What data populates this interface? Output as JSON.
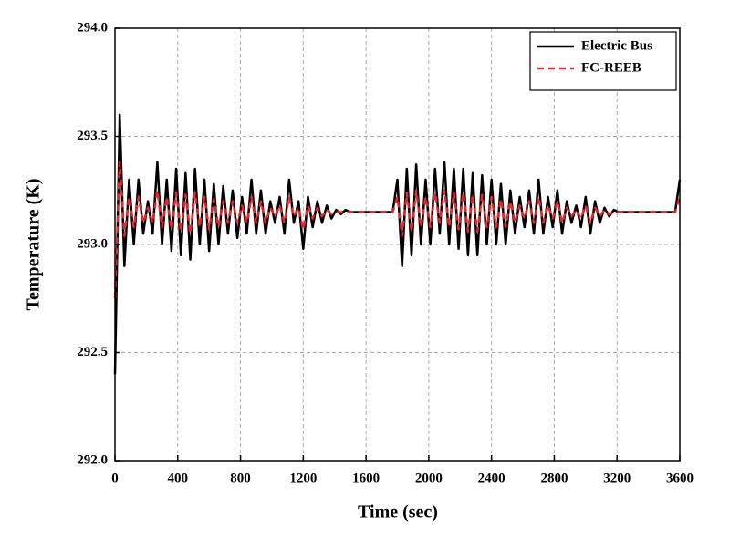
{
  "chart_data": {
    "type": "line",
    "xlabel": "Time (sec)",
    "ylabel": "Temperature (K)",
    "x": [
      0,
      30,
      60,
      90,
      120,
      150,
      180,
      210,
      240,
      270,
      300,
      330,
      360,
      390,
      420,
      450,
      480,
      510,
      540,
      570,
      600,
      630,
      660,
      690,
      720,
      750,
      780,
      810,
      840,
      870,
      900,
      930,
      960,
      990,
      1020,
      1050,
      1080,
      1110,
      1140,
      1170,
      1200,
      1230,
      1260,
      1290,
      1320,
      1350,
      1380,
      1410,
      1440,
      1470,
      1500,
      1530,
      1560,
      1590,
      1620,
      1650,
      1680,
      1710,
      1740,
      1770,
      1800,
      1830,
      1860,
      1890,
      1920,
      1950,
      1980,
      2010,
      2040,
      2070,
      2100,
      2130,
      2160,
      2190,
      2220,
      2250,
      2280,
      2310,
      2340,
      2370,
      2400,
      2430,
      2460,
      2490,
      2520,
      2550,
      2580,
      2610,
      2640,
      2670,
      2700,
      2730,
      2760,
      2790,
      2820,
      2850,
      2880,
      2910,
      2940,
      2970,
      3000,
      3030,
      3060,
      3090,
      3120,
      3150,
      3180,
      3210,
      3240,
      3270,
      3300,
      3330,
      3360,
      3390,
      3420,
      3450,
      3480,
      3510,
      3540,
      3570,
      3600
    ],
    "series": [
      {
        "name": "Electric Bus",
        "color": "#000000",
        "linestyle": "solid",
        "values": [
          292.4,
          293.6,
          292.9,
          293.3,
          293.0,
          293.3,
          293.05,
          293.2,
          293.05,
          293.38,
          293.0,
          293.3,
          292.97,
          293.35,
          292.95,
          293.33,
          292.93,
          293.35,
          293.0,
          293.3,
          292.97,
          293.28,
          293.0,
          293.27,
          293.05,
          293.25,
          293.03,
          293.22,
          293.05,
          293.3,
          293.05,
          293.25,
          293.05,
          293.2,
          293.1,
          293.22,
          293.05,
          293.3,
          293.1,
          293.2,
          292.98,
          293.22,
          293.08,
          293.2,
          293.1,
          293.18,
          293.12,
          293.16,
          293.14,
          293.16,
          293.15,
          293.15,
          293.15,
          293.15,
          293.15,
          293.15,
          293.15,
          293.15,
          293.15,
          293.15,
          293.3,
          292.9,
          293.35,
          292.95,
          293.37,
          293.0,
          293.3,
          293.0,
          293.35,
          293.05,
          293.38,
          293.0,
          293.35,
          292.98,
          293.35,
          292.95,
          293.33,
          292.95,
          293.32,
          293.0,
          293.3,
          293.0,
          293.28,
          293.0,
          293.25,
          293.05,
          293.22,
          293.08,
          293.25,
          293.05,
          293.3,
          293.05,
          293.22,
          293.08,
          293.25,
          293.05,
          293.2,
          293.1,
          293.18,
          293.08,
          293.22,
          293.05,
          293.2,
          293.1,
          293.17,
          293.13,
          293.16,
          293.15,
          293.15,
          293.15,
          293.15,
          293.15,
          293.15,
          293.15,
          293.15,
          293.15,
          293.15,
          293.15,
          293.15,
          293.15,
          293.3
        ]
      },
      {
        "name": "FC-REEB",
        "color": "#e8262a",
        "linestyle": "dashed",
        "values": [
          292.75,
          293.38,
          293.04,
          293.22,
          293.08,
          293.22,
          293.1,
          293.17,
          293.1,
          293.25,
          293.08,
          293.22,
          293.07,
          293.24,
          293.06,
          293.23,
          293.05,
          293.24,
          293.08,
          293.22,
          293.07,
          293.21,
          293.08,
          293.2,
          293.1,
          293.2,
          293.1,
          293.18,
          293.1,
          293.22,
          293.1,
          293.2,
          293.1,
          293.17,
          293.13,
          293.18,
          293.1,
          293.22,
          293.13,
          293.17,
          293.07,
          293.18,
          293.12,
          293.17,
          293.13,
          293.16,
          293.14,
          293.15,
          293.15,
          293.15,
          293.15,
          293.15,
          293.15,
          293.15,
          293.15,
          293.15,
          293.15,
          293.15,
          293.15,
          293.15,
          293.22,
          293.04,
          293.24,
          293.06,
          293.25,
          293.08,
          293.22,
          293.08,
          293.24,
          293.1,
          293.25,
          293.08,
          293.24,
          293.07,
          293.24,
          293.06,
          293.23,
          293.06,
          293.23,
          293.08,
          293.22,
          293.08,
          293.21,
          293.08,
          293.2,
          293.1,
          293.18,
          293.12,
          293.2,
          293.1,
          293.22,
          293.1,
          293.18,
          293.12,
          293.2,
          293.1,
          293.17,
          293.13,
          293.16,
          293.12,
          293.18,
          293.1,
          293.17,
          293.13,
          293.16,
          293.14,
          293.15,
          293.15,
          293.15,
          293.15,
          293.15,
          293.15,
          293.15,
          293.15,
          293.15,
          293.15,
          293.15,
          293.15,
          293.15,
          293.15,
          293.22
        ]
      }
    ],
    "xlim": [
      0,
      3600
    ],
    "xticks": [
      0,
      400,
      800,
      1200,
      1600,
      2000,
      2400,
      2800,
      3200,
      3600
    ],
    "ylim": [
      292,
      294
    ],
    "yticks": [
      {
        "value": 292,
        "label": "292.0"
      },
      {
        "value": 292.5,
        "label": "292.5"
      },
      {
        "value": 293,
        "label": "293.0"
      },
      {
        "value": 293.5,
        "label": "293.5"
      },
      {
        "value": 294,
        "label": "294.0"
      }
    ],
    "grid": true,
    "legend": "upper right"
  }
}
